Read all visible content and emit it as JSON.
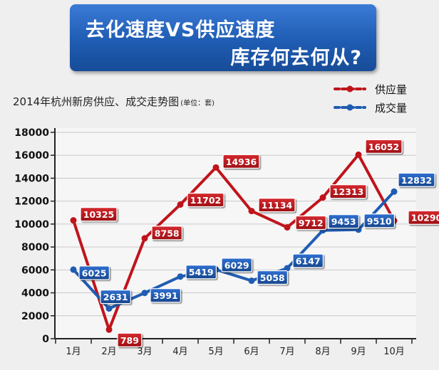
{
  "banner": {
    "line1": "去化速度VS供应速度",
    "line2": "库存何去何从?"
  },
  "subtitle": {
    "text": "2014年杭州新房供应、成交走势图",
    "unit": "(单位：套)"
  },
  "colors": {
    "supply": "#c0141b",
    "deal": "#1f5cb3",
    "grid": "#c8c8c8",
    "axis": "#222222"
  },
  "chart_data": {
    "type": "line",
    "title": "2014年杭州新房供应、成交走势图",
    "unit": "(单位：套)",
    "categories": [
      "1月",
      "2月",
      "3月",
      "4月",
      "5月",
      "6月",
      "7月",
      "8月",
      "9月",
      "10月"
    ],
    "series": [
      {
        "name": "供应量",
        "color": "#c0141b",
        "values": [
          10325,
          789,
          8758,
          11702,
          14936,
          11134,
          9712,
          12313,
          16052,
          10290
        ]
      },
      {
        "name": "成交量",
        "color": "#1f5cb3",
        "values": [
          6025,
          2631,
          3991,
          5419,
          6029,
          5058,
          6147,
          9453,
          9510,
          12832
        ]
      }
    ],
    "yticks": [
      0,
      2000,
      4000,
      6000,
      8000,
      10000,
      12000,
      14000,
      16000,
      18000
    ],
    "ylim": [
      0,
      18000
    ],
    "grid": true,
    "legend": "top-right"
  }
}
